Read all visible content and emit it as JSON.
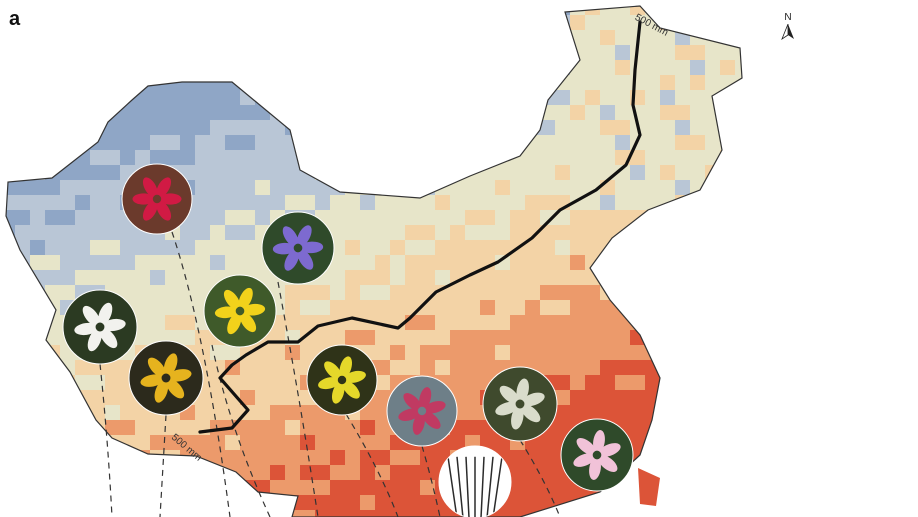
{
  "panel_label": "a",
  "north_arrow": {
    "letter": "N",
    "icon": "north-arrow-icon"
  },
  "isohyet": {
    "label_top": "500 mm",
    "label_bottom": "500 mm"
  },
  "colors": {
    "dry": "#8fa6c6",
    "dry_mid": "#b9c6d6",
    "neutral": "#e7e5c9",
    "wet_light": "#f3d3a6",
    "wet_mid": "#ec9a6b",
    "wet": "#dc5438",
    "isohyet_line": "#111111",
    "border": "#333333"
  },
  "flower_photos": [
    {
      "name": "flower-photo-red-pea",
      "palette": [
        "#6b3a2c",
        "#d11a44"
      ]
    },
    {
      "name": "flower-photo-purple-geranium",
      "palette": [
        "#2f4a2a",
        "#7d6ad0"
      ]
    },
    {
      "name": "flower-photo-yellow-pea",
      "palette": [
        "#3f5a2a",
        "#f2d21b"
      ]
    },
    {
      "name": "flower-photo-white-umbel",
      "palette": [
        "#2b3a22",
        "#f2f2ee"
      ]
    },
    {
      "name": "flower-photo-yellow-rudbeckia",
      "palette": [
        "#2c2a1c",
        "#e6b31e"
      ]
    },
    {
      "name": "flower-photo-yellow-star",
      "palette": [
        "#2f3318",
        "#e5d82a"
      ]
    },
    {
      "name": "flower-photo-pink-tassel",
      "palette": [
        "#6e7f88",
        "#c03a62"
      ]
    },
    {
      "name": "flower-photo-white-buds",
      "palette": [
        "#3f4a2d",
        "#d9dccb"
      ]
    },
    {
      "name": "flower-photo-pink-magnolia",
      "palette": [
        "#2f4a2a",
        "#f1c2d8"
      ]
    },
    {
      "name": "flower-photo-grass-spike",
      "palette": [
        "#ffffff",
        "#2b2b2b"
      ]
    }
  ]
}
